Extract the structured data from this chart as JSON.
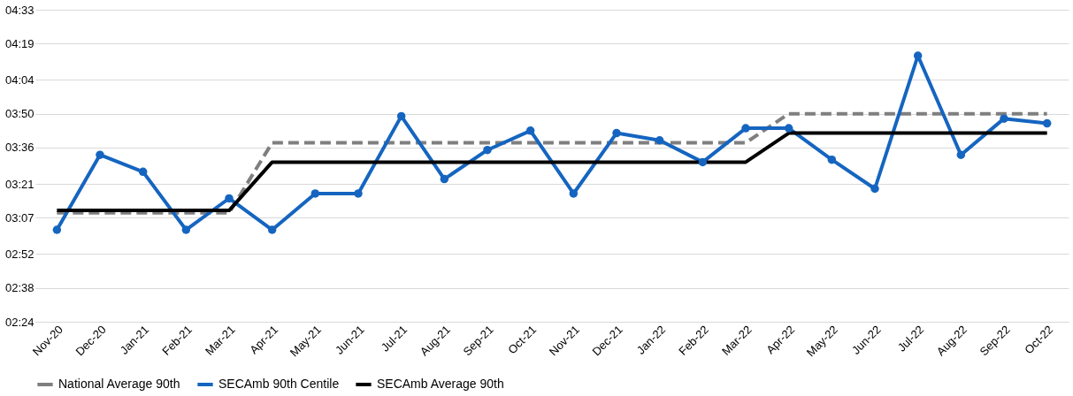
{
  "chart_data": {
    "type": "line",
    "categories": [
      "Nov-20",
      "Dec-20",
      "Jan-21",
      "Feb-21",
      "Mar-21",
      "Apr-21",
      "May-21",
      "Jun-21",
      "Jul-21",
      "Aug-21",
      "Sep-21",
      "Oct-21",
      "Nov-21",
      "Dec-21",
      "Jan-22",
      "Feb-22",
      "Mar-22",
      "Apr-22",
      "May-22",
      "Jun-22",
      "Jul-22",
      "Aug-22",
      "Sep-22",
      "Oct-22"
    ],
    "series": [
      {
        "name": "National Average 90th",
        "color": "#7f7f7f",
        "line_style": "dashed",
        "marker": "none",
        "values": [
          189,
          189,
          189,
          189,
          189,
          218,
          218,
          218,
          218,
          218,
          218,
          218,
          218,
          218,
          218,
          218,
          218,
          230,
          230,
          230,
          230,
          230,
          230,
          230
        ]
      },
      {
        "name": "SECAmb 90th Centile",
        "color": "#1565c0",
        "line_style": "solid",
        "marker": "circle",
        "values": [
          182,
          213,
          206,
          182,
          195,
          182,
          197,
          197,
          229,
          203,
          215,
          223,
          197,
          222,
          219,
          210,
          224,
          224,
          211,
          199,
          254,
          213,
          228,
          226
        ]
      },
      {
        "name": "SECAmb Average 90th",
        "color": "#000000",
        "line_style": "solid",
        "marker": "none",
        "values": [
          190,
          190,
          190,
          190,
          190,
          210,
          210,
          210,
          210,
          210,
          210,
          210,
          210,
          210,
          210,
          210,
          210,
          222,
          222,
          222,
          222,
          222,
          222,
          222
        ]
      }
    ],
    "ylim": [
      144,
      273
    ],
    "yticks": [
      {
        "value": 144,
        "label": "02:24"
      },
      {
        "value": 158,
        "label": "02:38"
      },
      {
        "value": 172,
        "label": "02:52"
      },
      {
        "value": 187,
        "label": "03:07"
      },
      {
        "value": 201,
        "label": "03:21"
      },
      {
        "value": 216,
        "label": "03:36"
      },
      {
        "value": 230,
        "label": "03:50"
      },
      {
        "value": 244,
        "label": "04:04"
      },
      {
        "value": 259,
        "label": "04:19"
      },
      {
        "value": 273,
        "label": "04:33"
      }
    ],
    "grid": "y",
    "legend": "bottom"
  }
}
